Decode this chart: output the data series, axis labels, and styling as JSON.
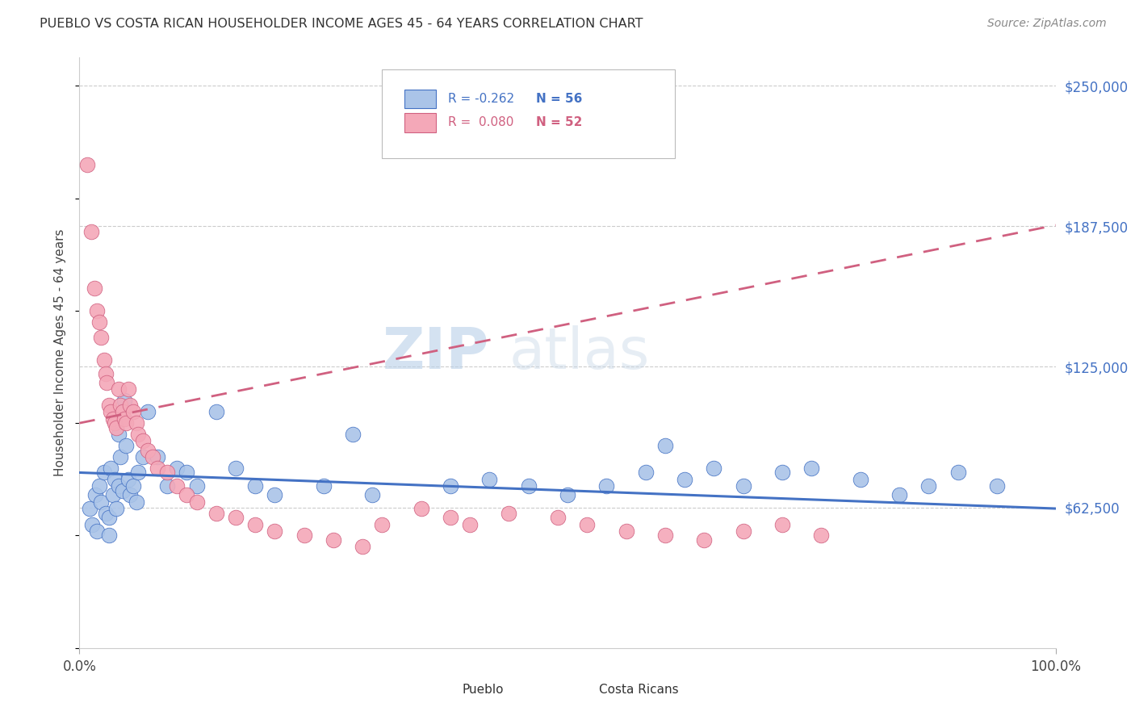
{
  "title": "PUEBLO VS COSTA RICAN HOUSEHOLDER INCOME AGES 45 - 64 YEARS CORRELATION CHART",
  "source": "Source: ZipAtlas.com",
  "ylabel": "Householder Income Ages 45 - 64 years",
  "xlim": [
    0,
    1.0
  ],
  "ylim": [
    0,
    262500
  ],
  "ytick_labels": [
    "$62,500",
    "$125,000",
    "$187,500",
    "$250,000"
  ],
  "ytick_values": [
    62500,
    125000,
    187500,
    250000
  ],
  "pueblo_color": "#aac4e8",
  "costa_color": "#f4a8b8",
  "pueblo_line_color": "#4472c4",
  "costa_line_color": "#d06080",
  "r_pueblo": -0.262,
  "n_pueblo": 56,
  "r_costa": 0.08,
  "n_costa": 52,
  "legend_label_pueblo": "Pueblo",
  "legend_label_costa": "Costa Ricans",
  "pueblo_x": [
    0.01,
    0.013,
    0.016,
    0.018,
    0.02,
    0.022,
    0.025,
    0.027,
    0.03,
    0.03,
    0.032,
    0.034,
    0.036,
    0.038,
    0.04,
    0.04,
    0.042,
    0.044,
    0.046,
    0.048,
    0.05,
    0.052,
    0.055,
    0.058,
    0.06,
    0.065,
    0.07,
    0.08,
    0.09,
    0.1,
    0.11,
    0.12,
    0.14,
    0.16,
    0.18,
    0.2,
    0.25,
    0.28,
    0.3,
    0.38,
    0.42,
    0.46,
    0.5,
    0.54,
    0.58,
    0.6,
    0.62,
    0.65,
    0.68,
    0.72,
    0.75,
    0.8,
    0.84,
    0.87,
    0.9,
    0.94
  ],
  "pueblo_y": [
    62000,
    55000,
    68000,
    52000,
    72000,
    65000,
    78000,
    60000,
    58000,
    50000,
    80000,
    68000,
    75000,
    62000,
    95000,
    72000,
    85000,
    70000,
    110000,
    90000,
    75000,
    68000,
    72000,
    65000,
    78000,
    85000,
    105000,
    85000,
    72000,
    80000,
    78000,
    72000,
    105000,
    80000,
    72000,
    68000,
    72000,
    95000,
    68000,
    72000,
    75000,
    72000,
    68000,
    72000,
    78000,
    90000,
    75000,
    80000,
    72000,
    78000,
    80000,
    75000,
    68000,
    72000,
    78000,
    72000
  ],
  "costa_x": [
    0.008,
    0.012,
    0.015,
    0.018,
    0.02,
    0.022,
    0.025,
    0.027,
    0.028,
    0.03,
    0.032,
    0.034,
    0.036,
    0.038,
    0.04,
    0.042,
    0.044,
    0.046,
    0.048,
    0.05,
    0.052,
    0.055,
    0.058,
    0.06,
    0.065,
    0.07,
    0.075,
    0.08,
    0.09,
    0.1,
    0.11,
    0.12,
    0.14,
    0.16,
    0.18,
    0.2,
    0.23,
    0.26,
    0.29,
    0.31,
    0.35,
    0.38,
    0.4,
    0.44,
    0.49,
    0.52,
    0.56,
    0.6,
    0.64,
    0.68,
    0.72,
    0.76
  ],
  "costa_y": [
    215000,
    185000,
    160000,
    150000,
    145000,
    138000,
    128000,
    122000,
    118000,
    108000,
    105000,
    102000,
    100000,
    98000,
    115000,
    108000,
    105000,
    102000,
    100000,
    115000,
    108000,
    105000,
    100000,
    95000,
    92000,
    88000,
    85000,
    80000,
    78000,
    72000,
    68000,
    65000,
    60000,
    58000,
    55000,
    52000,
    50000,
    48000,
    45000,
    55000,
    62000,
    58000,
    55000,
    60000,
    58000,
    55000,
    52000,
    50000,
    48000,
    52000,
    55000,
    50000
  ],
  "watermark_zip": "ZIP",
  "watermark_atlas": "atlas",
  "background_color": "#ffffff",
  "grid_color": "#cccccc",
  "grid_linestyle": "--"
}
